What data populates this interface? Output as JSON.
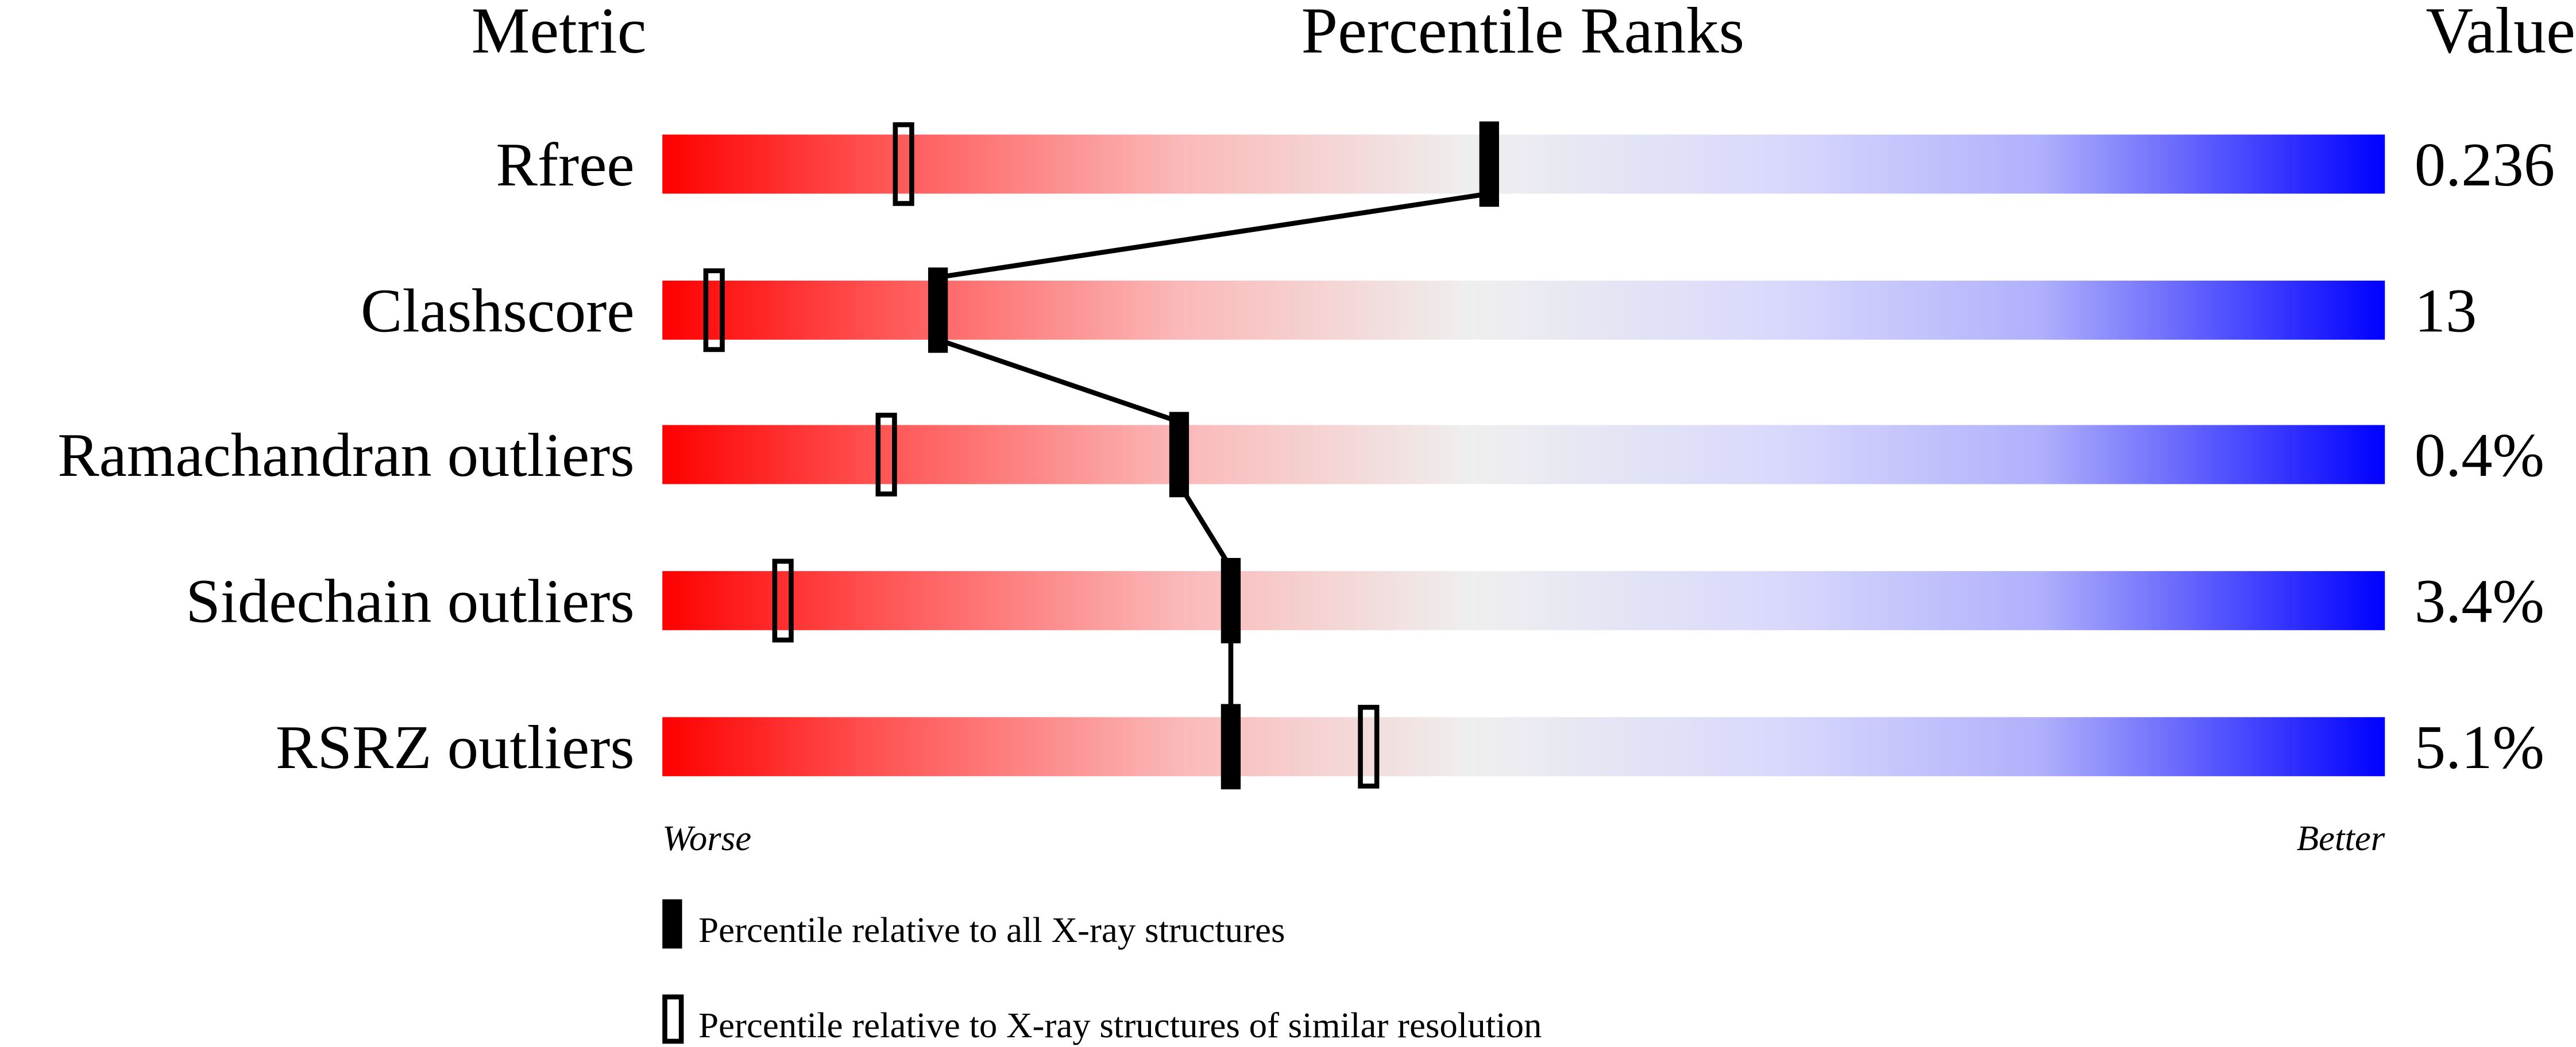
{
  "chart_data": {
    "type": "percentile-slider",
    "headers": {
      "metric": "Metric",
      "ranks": "Percentile Ranks",
      "value": "Value"
    },
    "xlim": [
      0,
      100
    ],
    "axis_labels": {
      "left": "Worse",
      "right": "Better"
    },
    "gradient_colors": {
      "worse": "#ff0000",
      "middle": "#efefef",
      "better": "#0000ff"
    },
    "metrics": [
      {
        "name": "Rfree",
        "value": "0.236",
        "percentile_all": 48,
        "percentile_similar": 14
      },
      {
        "name": "Clashscore",
        "value": "13",
        "percentile_all": 16,
        "percentile_similar": 3
      },
      {
        "name": "Ramachandran outliers",
        "value": "0.4%",
        "percentile_all": 30,
        "percentile_similar": 13
      },
      {
        "name": "Sidechain outliers",
        "value": "3.4%",
        "percentile_all": 33,
        "percentile_similar": 7
      },
      {
        "name": "RSRZ outliers",
        "value": "5.1%",
        "percentile_all": 33,
        "percentile_similar": 41
      }
    ],
    "legend": [
      {
        "marker": "filled",
        "label": "Percentile relative to all X-ray structures"
      },
      {
        "marker": "open",
        "label": "Percentile relative to X-ray structures of similar resolution"
      }
    ]
  }
}
